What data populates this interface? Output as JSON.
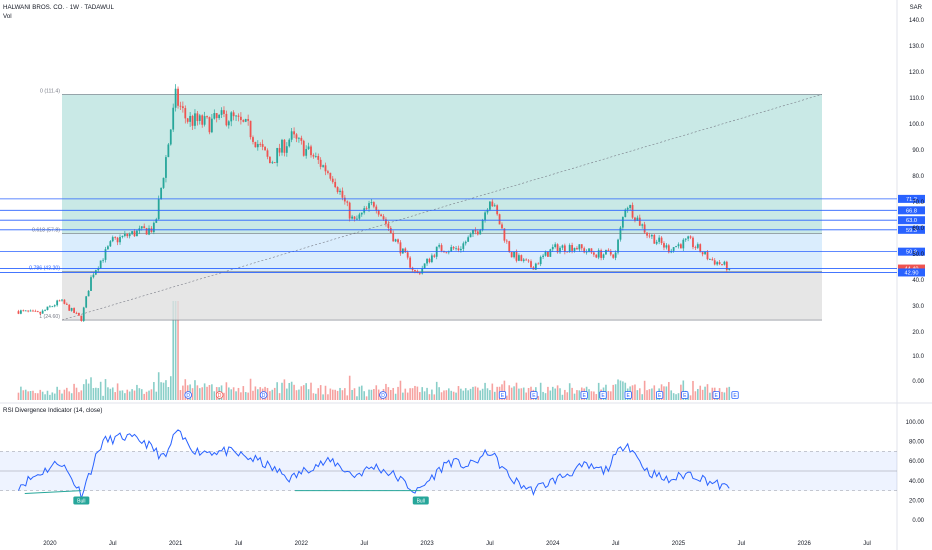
{
  "header": {
    "symbol_line": "HALWANI BROS. CO. · 1W · TADAWUL",
    "volume_label": "Vol",
    "currency": "SAR",
    "rsi_label": "RSI Divergence Indicator (14, close)"
  },
  "price_axis": {
    "ticks": [
      "140.0",
      "130.0",
      "120.0",
      "110.0",
      "100.0",
      "90.0",
      "80.0",
      "70.0",
      "60.0",
      "50.0",
      "40.0",
      "30.0",
      "20.0",
      "10.0",
      "0.00"
    ]
  },
  "rsi_axis": {
    "ticks": [
      "100.00",
      "80.00",
      "60.00",
      "40.00",
      "20.00",
      "0.00"
    ]
  },
  "time_axis": {
    "labels": [
      "2020",
      "Jul",
      "2021",
      "Jul",
      "2022",
      "Jul",
      "2023",
      "Jul",
      "2024",
      "Jul",
      "2025",
      "Jul",
      "2026",
      "Jul"
    ]
  },
  "colors": {
    "up": "#26a69a",
    "down": "#ef5350",
    "rsi_line": "#2962ff",
    "fib_fill": "#b2dfdb",
    "level_line": "#2962ff",
    "badge_bull": "#26a69a",
    "badge_bear": "#ef5350"
  },
  "fib": {
    "labels": [
      "0 (111.4)",
      "0.618 (57.8)",
      "0.786 (43.20)",
      "1 (24.60)"
    ],
    "values": [
      111.4,
      57.8,
      43.2,
      24.6
    ]
  },
  "levels": [
    {
      "value": 71.2,
      "label": "71.2"
    },
    {
      "value": 66.8,
      "label": "66.8"
    },
    {
      "value": 63.0,
      "label": "63.0"
    },
    {
      "value": 59.3,
      "label": "59.3"
    },
    {
      "value": 50.9,
      "label": "50.9"
    },
    {
      "value": 44.4,
      "label": "44.40",
      "color": "#ef5350"
    },
    {
      "value": 42.9,
      "label": "42.90"
    }
  ],
  "events": {
    "dividend_markers": [
      "D",
      "D",
      "D",
      "D",
      "E",
      "E",
      "E",
      "E",
      "E",
      "E",
      "E",
      "E",
      "E"
    ]
  },
  "rsi_badges": [
    "Bull",
    "Bull"
  ],
  "chart_data": {
    "type": "candlestick",
    "timeframe": "1W",
    "x_range": [
      "2019-09",
      "2026-09"
    ],
    "ylim": [
      0,
      145
    ],
    "price_series": {
      "name": "HALWANI BROS. CO.",
      "dates": [
        "2019-10",
        "2019-12",
        "2020-02",
        "2020-04",
        "2020-05",
        "2020-07",
        "2020-09",
        "2020-11",
        "2021-01",
        "2021-02",
        "2021-04",
        "2021-06",
        "2021-08",
        "2021-10",
        "2021-12",
        "2022-02",
        "2022-04",
        "2022-06",
        "2022-08",
        "2022-10",
        "2022-12",
        "2023-02",
        "2023-04",
        "2023-06",
        "2023-07",
        "2023-09",
        "2023-11",
        "2024-01",
        "2024-03",
        "2024-05",
        "2024-07",
        "2024-08",
        "2024-10",
        "2024-12",
        "2025-02",
        "2025-04",
        "2025-06"
      ],
      "close": [
        28,
        27,
        32,
        25,
        42,
        55,
        58,
        60,
        110,
        102,
        100,
        103,
        98,
        85,
        95,
        88,
        80,
        62,
        70,
        55,
        42,
        52,
        52,
        60,
        72,
        50,
        45,
        52,
        53,
        50,
        50,
        70,
        58,
        52,
        55,
        48,
        44.4
      ]
    },
    "last_price": 44.4,
    "volume_series": {
      "name": "Vol",
      "approx_peak": 30,
      "peak_date": "2021-01"
    },
    "rsi_series": {
      "name": "RSI (14)",
      "dates": [
        "2019-10",
        "2020-02",
        "2020-04",
        "2020-06",
        "2020-08",
        "2020-10",
        "2020-12",
        "2021-01",
        "2021-03",
        "2021-06",
        "2021-09",
        "2021-12",
        "2022-02",
        "2022-04",
        "2022-06",
        "2022-08",
        "2022-10",
        "2022-12",
        "2023-03",
        "2023-05",
        "2023-07",
        "2023-09",
        "2023-11",
        "2024-01",
        "2024-04",
        "2024-06",
        "2024-08",
        "2024-10",
        "2024-12",
        "2025-02",
        "2025-05",
        "2025-06"
      ],
      "values": [
        35,
        60,
        27,
        80,
        85,
        80,
        62,
        90,
        70,
        70,
        60,
        42,
        55,
        60,
        45,
        55,
        45,
        28,
        60,
        55,
        70,
        42,
        30,
        40,
        55,
        50,
        80,
        50,
        40,
        48,
        35,
        31
      ],
      "ylim": [
        0,
        100
      ]
    }
  }
}
